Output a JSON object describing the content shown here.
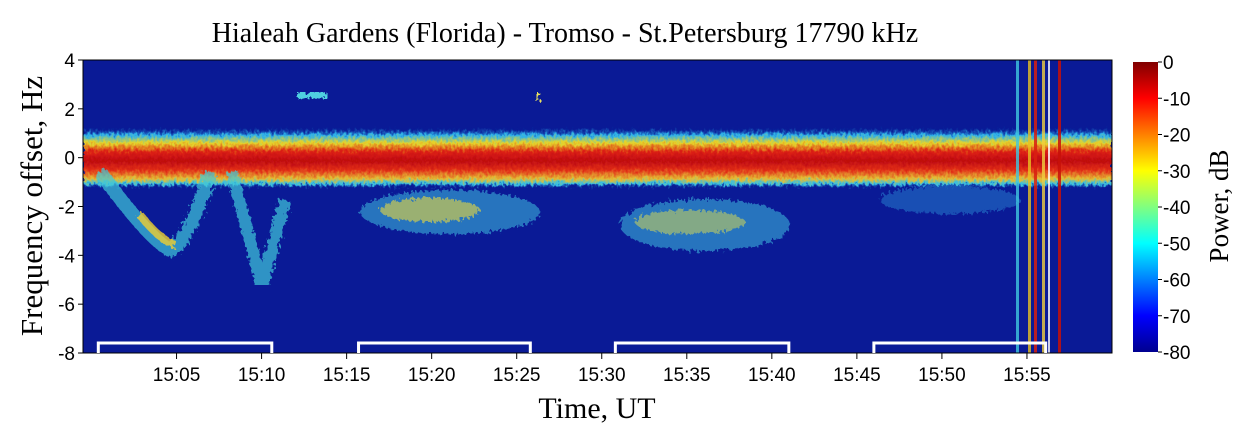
{
  "chart_data": {
    "type": "spectrogram",
    "title": "Hialeah Gardens (Florida) - Tromso - St.Petersburg   17790 kHz",
    "x_label": "Time, UT",
    "y_label": "Frequency offset, Hz",
    "colorbar_label": "Power, dB",
    "colormap": "jet",
    "xlim": [
      899.5,
      960
    ],
    "xticks": [
      {
        "value": 905,
        "label": "15:05"
      },
      {
        "value": 910,
        "label": "15:10"
      },
      {
        "value": 915,
        "label": "15:15"
      },
      {
        "value": 920,
        "label": "15:20"
      },
      {
        "value": 925,
        "label": "15:25"
      },
      {
        "value": 930,
        "label": "15:30"
      },
      {
        "value": 935,
        "label": "15:35"
      },
      {
        "value": 940,
        "label": "15:40"
      },
      {
        "value": 945,
        "label": "15:45"
      },
      {
        "value": 950,
        "label": "15:50"
      },
      {
        "value": 955,
        "label": "15:55"
      }
    ],
    "ylim": [
      -8,
      4
    ],
    "yticks": [
      -8,
      -6,
      -4,
      -2,
      0,
      2,
      4
    ],
    "clim": [
      -80,
      0
    ],
    "cticks": [
      -80,
      -70,
      -60,
      -50,
      -40,
      -30,
      -20,
      -10,
      0
    ],
    "intervals": [
      {
        "start": 900.4,
        "end": 910.6
      },
      {
        "start": 915.7,
        "end": 925.8
      },
      {
        "start": 930.8,
        "end": 941
      },
      {
        "start": 946,
        "end": 956.1
      }
    ]
  }
}
